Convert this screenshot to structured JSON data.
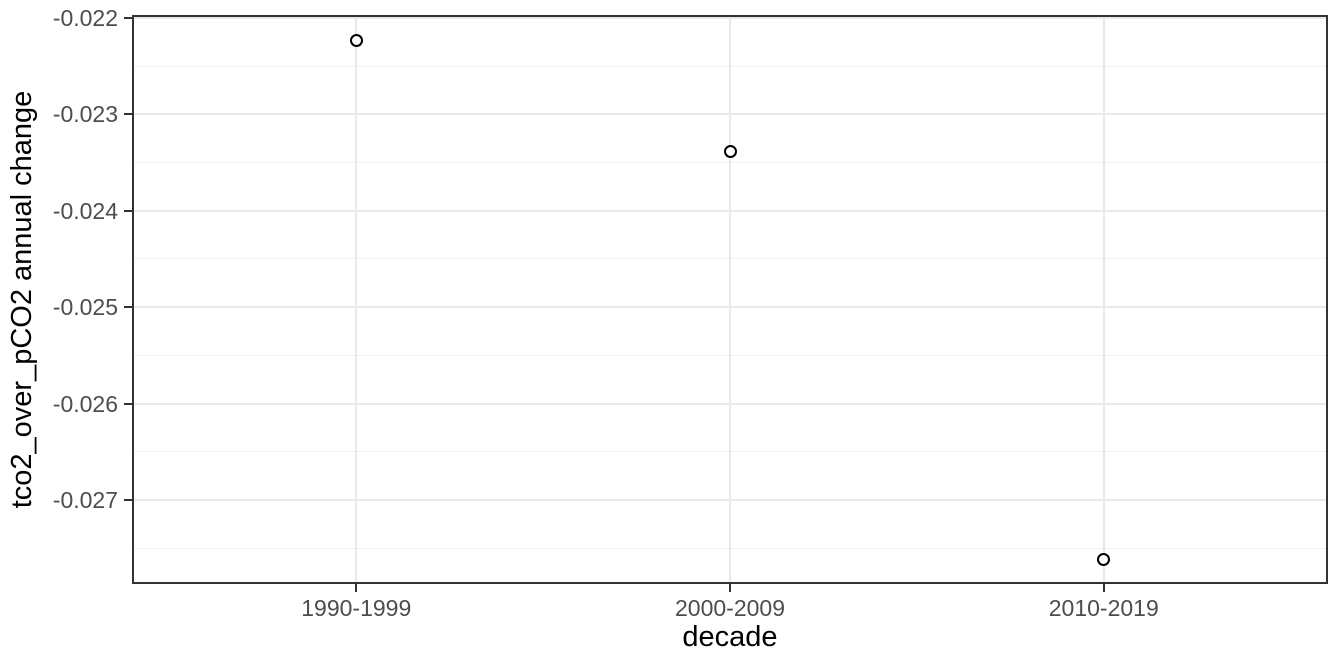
{
  "chart_data": {
    "type": "scatter",
    "title": "",
    "xlabel": "decade",
    "ylabel": "tco2_over_pCO2 annual change",
    "categories": [
      "1990-1999",
      "2000-2009",
      "2010-2019"
    ],
    "series": [
      {
        "name": "tco2_over_pCO2 annual change",
        "values": [
          -0.02223,
          -0.02339,
          -0.02762
        ]
      }
    ],
    "ylim": [
      -0.02787,
      -0.02197
    ],
    "y_axis": {
      "major_tick_values": [
        -0.022,
        -0.023,
        -0.024,
        -0.025,
        -0.026,
        -0.027
      ],
      "major_tick_labels": [
        "-0.022",
        "-0.023",
        "-0.024",
        "-0.025",
        "-0.026",
        "-0.027"
      ],
      "minor_tick_values": [
        -0.0225,
        -0.0235,
        -0.0245,
        -0.0255,
        -0.0265,
        -0.0275
      ]
    },
    "layout_hints": {
      "grid_horizontal": "major and minor lines",
      "grid_vertical": "major lines at category positions only",
      "legend_position": "none",
      "marker": "open-circle"
    }
  },
  "style": {
    "background": "#ffffff",
    "panel_background": "#ffffff",
    "panel_border_color": "#333333",
    "grid_major_color": "#e9e9e9",
    "grid_minor_color": "#f1f1f1",
    "tick_mark_color": "#333333",
    "tick_label_color": "#4d4d4d",
    "axis_title_color": "#000000",
    "point_stroke_color": "#000000"
  }
}
